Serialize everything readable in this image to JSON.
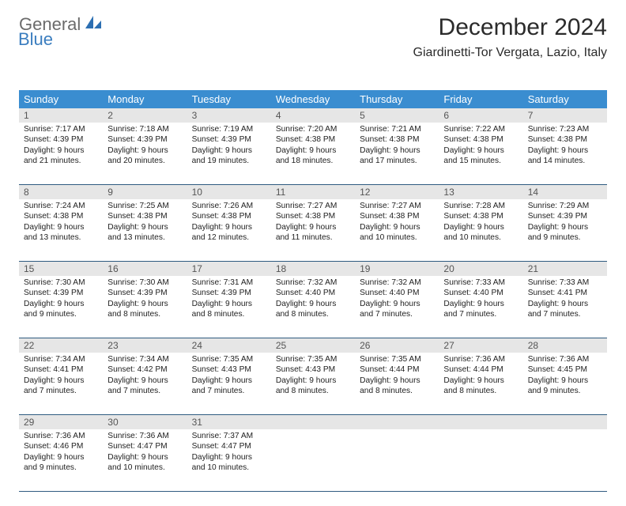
{
  "logo": {
    "text1": "General",
    "text2": "Blue"
  },
  "title": "December 2024",
  "location": "Giardinetti-Tor Vergata, Lazio, Italy",
  "colors": {
    "header_bg": "#3a8dd0",
    "header_text": "#ffffff",
    "daynum_bg": "#e6e6e6",
    "rule": "#2f5b80",
    "body_text": "#222222",
    "logo_gray": "#6b6b6b",
    "logo_blue": "#3a7dbf"
  },
  "weekdays": [
    "Sunday",
    "Monday",
    "Tuesday",
    "Wednesday",
    "Thursday",
    "Friday",
    "Saturday"
  ],
  "weeks": [
    [
      {
        "num": "1",
        "sunrise": "Sunrise: 7:17 AM",
        "sunset": "Sunset: 4:39 PM",
        "day1": "Daylight: 9 hours",
        "day2": "and 21 minutes."
      },
      {
        "num": "2",
        "sunrise": "Sunrise: 7:18 AM",
        "sunset": "Sunset: 4:39 PM",
        "day1": "Daylight: 9 hours",
        "day2": "and 20 minutes."
      },
      {
        "num": "3",
        "sunrise": "Sunrise: 7:19 AM",
        "sunset": "Sunset: 4:39 PM",
        "day1": "Daylight: 9 hours",
        "day2": "and 19 minutes."
      },
      {
        "num": "4",
        "sunrise": "Sunrise: 7:20 AM",
        "sunset": "Sunset: 4:38 PM",
        "day1": "Daylight: 9 hours",
        "day2": "and 18 minutes."
      },
      {
        "num": "5",
        "sunrise": "Sunrise: 7:21 AM",
        "sunset": "Sunset: 4:38 PM",
        "day1": "Daylight: 9 hours",
        "day2": "and 17 minutes."
      },
      {
        "num": "6",
        "sunrise": "Sunrise: 7:22 AM",
        "sunset": "Sunset: 4:38 PM",
        "day1": "Daylight: 9 hours",
        "day2": "and 15 minutes."
      },
      {
        "num": "7",
        "sunrise": "Sunrise: 7:23 AM",
        "sunset": "Sunset: 4:38 PM",
        "day1": "Daylight: 9 hours",
        "day2": "and 14 minutes."
      }
    ],
    [
      {
        "num": "8",
        "sunrise": "Sunrise: 7:24 AM",
        "sunset": "Sunset: 4:38 PM",
        "day1": "Daylight: 9 hours",
        "day2": "and 13 minutes."
      },
      {
        "num": "9",
        "sunrise": "Sunrise: 7:25 AM",
        "sunset": "Sunset: 4:38 PM",
        "day1": "Daylight: 9 hours",
        "day2": "and 13 minutes."
      },
      {
        "num": "10",
        "sunrise": "Sunrise: 7:26 AM",
        "sunset": "Sunset: 4:38 PM",
        "day1": "Daylight: 9 hours",
        "day2": "and 12 minutes."
      },
      {
        "num": "11",
        "sunrise": "Sunrise: 7:27 AM",
        "sunset": "Sunset: 4:38 PM",
        "day1": "Daylight: 9 hours",
        "day2": "and 11 minutes."
      },
      {
        "num": "12",
        "sunrise": "Sunrise: 7:27 AM",
        "sunset": "Sunset: 4:38 PM",
        "day1": "Daylight: 9 hours",
        "day2": "and 10 minutes."
      },
      {
        "num": "13",
        "sunrise": "Sunrise: 7:28 AM",
        "sunset": "Sunset: 4:38 PM",
        "day1": "Daylight: 9 hours",
        "day2": "and 10 minutes."
      },
      {
        "num": "14",
        "sunrise": "Sunrise: 7:29 AM",
        "sunset": "Sunset: 4:39 PM",
        "day1": "Daylight: 9 hours",
        "day2": "and 9 minutes."
      }
    ],
    [
      {
        "num": "15",
        "sunrise": "Sunrise: 7:30 AM",
        "sunset": "Sunset: 4:39 PM",
        "day1": "Daylight: 9 hours",
        "day2": "and 9 minutes."
      },
      {
        "num": "16",
        "sunrise": "Sunrise: 7:30 AM",
        "sunset": "Sunset: 4:39 PM",
        "day1": "Daylight: 9 hours",
        "day2": "and 8 minutes."
      },
      {
        "num": "17",
        "sunrise": "Sunrise: 7:31 AM",
        "sunset": "Sunset: 4:39 PM",
        "day1": "Daylight: 9 hours",
        "day2": "and 8 minutes."
      },
      {
        "num": "18",
        "sunrise": "Sunrise: 7:32 AM",
        "sunset": "Sunset: 4:40 PM",
        "day1": "Daylight: 9 hours",
        "day2": "and 8 minutes."
      },
      {
        "num": "19",
        "sunrise": "Sunrise: 7:32 AM",
        "sunset": "Sunset: 4:40 PM",
        "day1": "Daylight: 9 hours",
        "day2": "and 7 minutes."
      },
      {
        "num": "20",
        "sunrise": "Sunrise: 7:33 AM",
        "sunset": "Sunset: 4:40 PM",
        "day1": "Daylight: 9 hours",
        "day2": "and 7 minutes."
      },
      {
        "num": "21",
        "sunrise": "Sunrise: 7:33 AM",
        "sunset": "Sunset: 4:41 PM",
        "day1": "Daylight: 9 hours",
        "day2": "and 7 minutes."
      }
    ],
    [
      {
        "num": "22",
        "sunrise": "Sunrise: 7:34 AM",
        "sunset": "Sunset: 4:41 PM",
        "day1": "Daylight: 9 hours",
        "day2": "and 7 minutes."
      },
      {
        "num": "23",
        "sunrise": "Sunrise: 7:34 AM",
        "sunset": "Sunset: 4:42 PM",
        "day1": "Daylight: 9 hours",
        "day2": "and 7 minutes."
      },
      {
        "num": "24",
        "sunrise": "Sunrise: 7:35 AM",
        "sunset": "Sunset: 4:43 PM",
        "day1": "Daylight: 9 hours",
        "day2": "and 7 minutes."
      },
      {
        "num": "25",
        "sunrise": "Sunrise: 7:35 AM",
        "sunset": "Sunset: 4:43 PM",
        "day1": "Daylight: 9 hours",
        "day2": "and 8 minutes."
      },
      {
        "num": "26",
        "sunrise": "Sunrise: 7:35 AM",
        "sunset": "Sunset: 4:44 PM",
        "day1": "Daylight: 9 hours",
        "day2": "and 8 minutes."
      },
      {
        "num": "27",
        "sunrise": "Sunrise: 7:36 AM",
        "sunset": "Sunset: 4:44 PM",
        "day1": "Daylight: 9 hours",
        "day2": "and 8 minutes."
      },
      {
        "num": "28",
        "sunrise": "Sunrise: 7:36 AM",
        "sunset": "Sunset: 4:45 PM",
        "day1": "Daylight: 9 hours",
        "day2": "and 9 minutes."
      }
    ],
    [
      {
        "num": "29",
        "sunrise": "Sunrise: 7:36 AM",
        "sunset": "Sunset: 4:46 PM",
        "day1": "Daylight: 9 hours",
        "day2": "and 9 minutes."
      },
      {
        "num": "30",
        "sunrise": "Sunrise: 7:36 AM",
        "sunset": "Sunset: 4:47 PM",
        "day1": "Daylight: 9 hours",
        "day2": "and 10 minutes."
      },
      {
        "num": "31",
        "sunrise": "Sunrise: 7:37 AM",
        "sunset": "Sunset: 4:47 PM",
        "day1": "Daylight: 9 hours",
        "day2": "and 10 minutes."
      },
      {
        "num": "",
        "sunrise": "",
        "sunset": "",
        "day1": "",
        "day2": ""
      },
      {
        "num": "",
        "sunrise": "",
        "sunset": "",
        "day1": "",
        "day2": ""
      },
      {
        "num": "",
        "sunrise": "",
        "sunset": "",
        "day1": "",
        "day2": ""
      },
      {
        "num": "",
        "sunrise": "",
        "sunset": "",
        "day1": "",
        "day2": ""
      }
    ]
  ]
}
